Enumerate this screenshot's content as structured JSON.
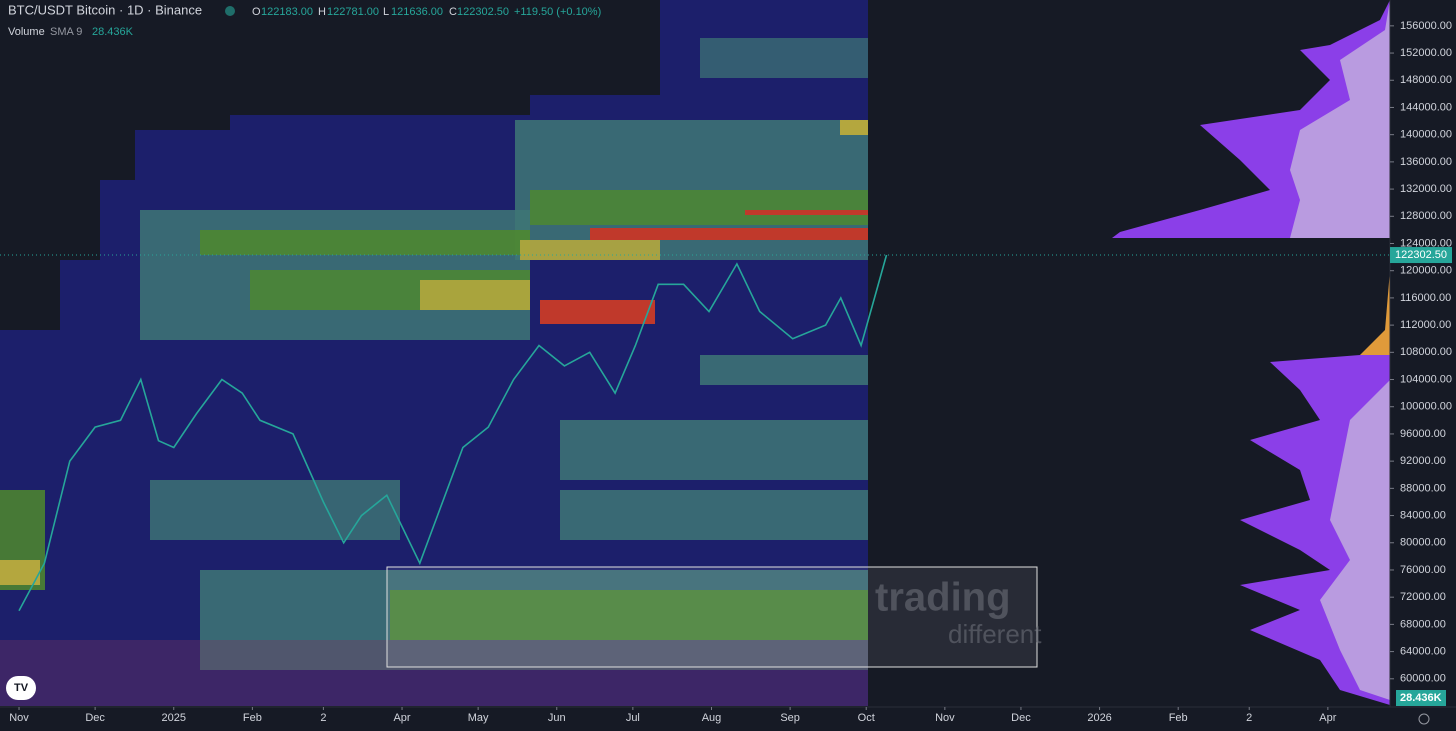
{
  "header": {
    "symbol": "BTC/USDT Bitcoin · 1D · Binance",
    "open_label": "O",
    "open": "122183.00",
    "high_label": "H",
    "high": "122781.00",
    "low_label": "L",
    "low": "121636.00",
    "close_label": "C",
    "close": "122302.50",
    "change": "+119.50 (+0.10%)",
    "volume_label": "Volume",
    "volume_sma": "SMA 9",
    "volume_value": "28.436K"
  },
  "watermark": {
    "line1": "trading",
    "line2": "different"
  },
  "chart_data": {
    "type": "line",
    "x": [
      0,
      10,
      20,
      30,
      40,
      48,
      55,
      61,
      70,
      80,
      88,
      95,
      108,
      120,
      128,
      135,
      145,
      158,
      165,
      175,
      185,
      195,
      205,
      215,
      225,
      235,
      243,
      252,
      262,
      272,
      283,
      292,
      305,
      318,
      324,
      332,
      338,
      342
    ],
    "series": [
      {
        "name": "BTC/USDT",
        "color": "#26a69a",
        "values": [
          70000,
          77000,
          92000,
          97000,
          98000,
          104000,
          95000,
          94000,
          99000,
          104000,
          102000,
          98000,
          96000,
          86000,
          80000,
          84000,
          87000,
          77000,
          84000,
          94000,
          97000,
          104000,
          109000,
          106000,
          108000,
          102000,
          109000,
          118000,
          118000,
          114000,
          121000,
          114000,
          110000,
          112000,
          116000,
          109000,
          117000,
          122302.5
        ]
      }
    ],
    "current_price": {
      "value": 122302.5,
      "label": "122302.50"
    },
    "current_volume": "28.436K",
    "ylim": [
      56000,
      159800
    ],
    "yticks": [
      {
        "value": 60000,
        "label": "60000.00"
      },
      {
        "value": 64000,
        "label": "64000.00"
      },
      {
        "value": 68000,
        "label": "68000.00"
      },
      {
        "value": 72000,
        "label": "72000.00"
      },
      {
        "value": 76000,
        "label": "76000.00"
      },
      {
        "value": 80000,
        "label": "80000.00"
      },
      {
        "value": 84000,
        "label": "84000.00"
      },
      {
        "value": 88000,
        "label": "88000.00"
      },
      {
        "value": 92000,
        "label": "92000.00"
      },
      {
        "value": 96000,
        "label": "96000.00"
      },
      {
        "value": 100000,
        "label": "100000.00"
      },
      {
        "value": 104000,
        "label": "104000.00"
      },
      {
        "value": 108000,
        "label": "108000.00"
      },
      {
        "value": 112000,
        "label": "112000.00"
      },
      {
        "value": 116000,
        "label": "116000.00"
      },
      {
        "value": 120000,
        "label": "120000.00"
      },
      {
        "value": 124000,
        "label": "124000.00"
      },
      {
        "value": 128000,
        "label": "128000.00"
      },
      {
        "value": 132000,
        "label": "132000.00"
      },
      {
        "value": 136000,
        "label": "136000.00"
      },
      {
        "value": 140000,
        "label": "140000.00"
      },
      {
        "value": 144000,
        "label": "144000.00"
      },
      {
        "value": 148000,
        "label": "148000.00"
      },
      {
        "value": 152000,
        "label": "152000.00"
      },
      {
        "value": 156000,
        "label": "156000.00"
      }
    ],
    "xlim": [
      -7.5,
      540.5
    ],
    "xticks": [
      {
        "value": 0,
        "label": "Nov"
      },
      {
        "value": 30,
        "label": "Dec"
      },
      {
        "value": 61,
        "label": "2025"
      },
      {
        "value": 92,
        "label": "Feb"
      },
      {
        "value": 120,
        "label": "2"
      },
      {
        "value": 151,
        "label": "Apr"
      },
      {
        "value": 181,
        "label": "May"
      },
      {
        "value": 212,
        "label": "Jun"
      },
      {
        "value": 242,
        "label": "Jul"
      },
      {
        "value": 273,
        "label": "Aug"
      },
      {
        "value": 304,
        "label": "Sep"
      },
      {
        "value": 334,
        "label": "Oct"
      },
      {
        "value": 365,
        "label": "Nov"
      },
      {
        "value": 395,
        "label": "Dec"
      },
      {
        "value": 426,
        "label": "2026"
      },
      {
        "value": 457,
        "label": "Feb"
      },
      {
        "value": 485,
        "label": "2"
      },
      {
        "value": 516,
        "label": "Apr"
      }
    ]
  }
}
